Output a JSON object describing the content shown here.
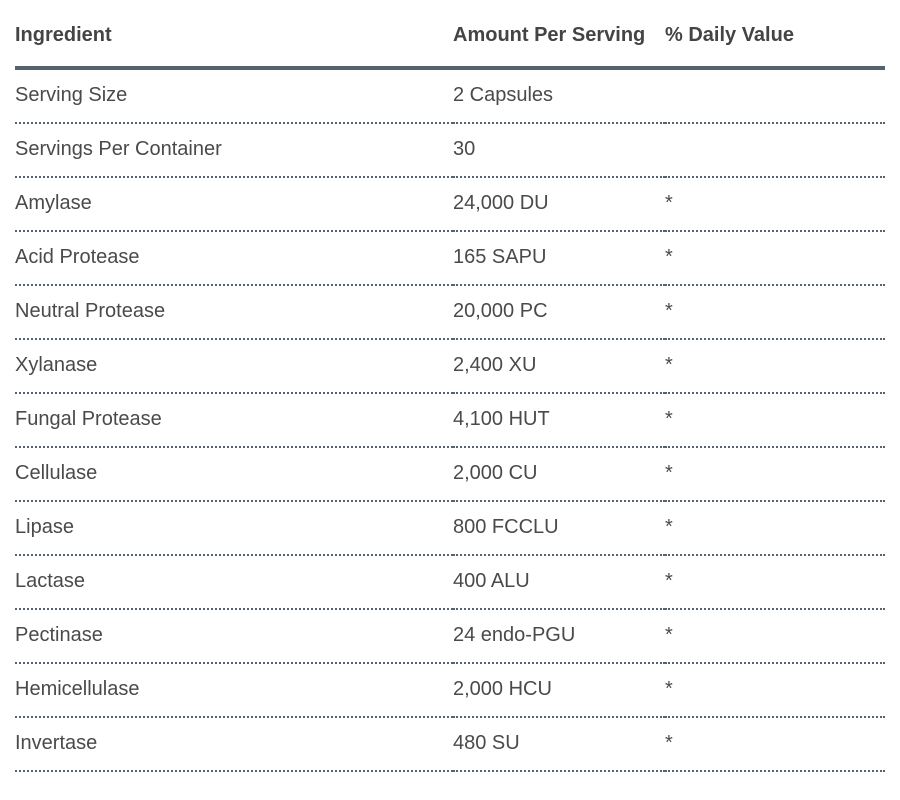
{
  "table": {
    "columns": [
      {
        "label": "Ingredient"
      },
      {
        "label": "Amount Per Serving"
      },
      {
        "label": "% Daily Value"
      }
    ],
    "rows": [
      {
        "ingredient": "Serving Size",
        "amount": "2 Capsules",
        "daily_value": ""
      },
      {
        "ingredient": "Servings Per Container",
        "amount": "30",
        "daily_value": ""
      },
      {
        "ingredient": "Amylase",
        "amount": "24,000 DU",
        "daily_value": "*"
      },
      {
        "ingredient": "Acid Protease",
        "amount": "165 SAPU",
        "daily_value": "*"
      },
      {
        "ingredient": "Neutral Protease",
        "amount": "20,000 PC",
        "daily_value": "*"
      },
      {
        "ingredient": "Xylanase",
        "amount": "2,400 XU",
        "daily_value": "*"
      },
      {
        "ingredient": "Fungal Protease",
        "amount": "4,100 HUT",
        "daily_value": "*"
      },
      {
        "ingredient": "Cellulase",
        "amount": "2,000 CU",
        "daily_value": "*"
      },
      {
        "ingredient": "Lipase",
        "amount": "800 FCCLU",
        "daily_value": "*"
      },
      {
        "ingredient": "Lactase",
        "amount": "400 ALU",
        "daily_value": "*"
      },
      {
        "ingredient": "Pectinase",
        "amount": "24 endo-PGU",
        "daily_value": "*"
      },
      {
        "ingredient": "Hemicellulase",
        "amount": "2,000 HCU",
        "daily_value": "*"
      },
      {
        "ingredient": "Invertase",
        "amount": "480 SU",
        "daily_value": "*"
      }
    ]
  },
  "colors": {
    "border": "#56626e",
    "header_text": "#444444",
    "body_text": "#4a4a4a"
  }
}
